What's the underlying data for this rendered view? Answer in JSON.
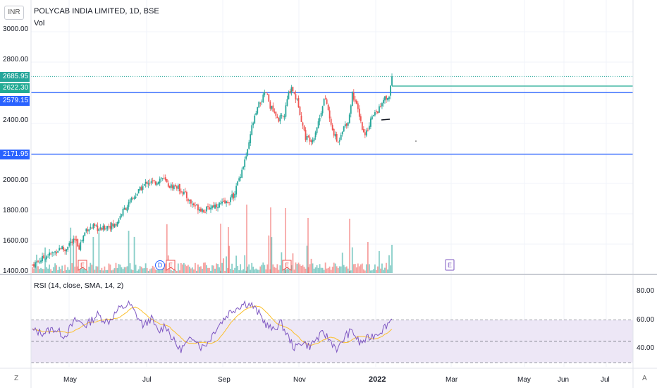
{
  "header": {
    "currency": "INR",
    "symbol_title": "POLYCAB INDIA LIMITED, 1D, BSE",
    "volume_label": "Vol"
  },
  "price_axis": {
    "labels": [
      "3000.00",
      "2800.00",
      "2400.00",
      "2000.00",
      "1800.00",
      "1600.00",
      "1400.00"
    ]
  },
  "price_tags": [
    {
      "value": "2685.95",
      "color": "#26a69a"
    },
    {
      "value": "2622.30",
      "color": "#22ab94"
    },
    {
      "value": "2579.15",
      "color": "#2962ff"
    },
    {
      "value": "2171.95",
      "color": "#2962ff"
    }
  ],
  "rsi": {
    "label": "RSI (14, close, SMA, 14, 2)",
    "axis_labels": [
      "80.00",
      "60.00",
      "40.00"
    ]
  },
  "time_axis": {
    "labels": [
      "May",
      "Jul",
      "Sep",
      "Nov",
      "2022",
      "Mar",
      "May",
      "Jun",
      "Jul"
    ],
    "bold_label": "2022"
  },
  "corner_buttons": {
    "left": "Z",
    "right": "A"
  },
  "event_markers": [
    "E",
    "D",
    "E",
    "E",
    "E"
  ],
  "colors": {
    "up": "#26a69a",
    "down": "#ef5350",
    "hline": "#2962ff",
    "rsi_line": "#7e57c2",
    "rsi_sma": "#fbc02d",
    "rsi_band": "#ede7f6"
  },
  "chart_data": {
    "type": "candlestick",
    "symbol": "POLYCAB INDIA LIMITED",
    "interval": "1D",
    "exchange": "BSE",
    "x_range": [
      "2021-04",
      "2022-07"
    ],
    "ylim": [
      1400,
      3050
    ],
    "horizontal_lines": [
      2579.15,
      2171.95,
      2622.3
    ],
    "last_price": 2685.95,
    "close_anchors": [
      {
        "t": 0,
        "v": 1440
      },
      {
        "t": 0.02,
        "v": 1470
      },
      {
        "t": 0.04,
        "v": 1500
      },
      {
        "t": 0.06,
        "v": 1520
      },
      {
        "t": 0.08,
        "v": 1560
      },
      {
        "t": 0.09,
        "v": 1530
      },
      {
        "t": 0.1,
        "v": 1580
      },
      {
        "t": 0.12,
        "v": 1600
      },
      {
        "t": 0.13,
        "v": 1560
      },
      {
        "t": 0.15,
        "v": 1680
      },
      {
        "t": 0.17,
        "v": 1690
      },
      {
        "t": 0.19,
        "v": 1670
      },
      {
        "t": 0.21,
        "v": 1700
      },
      {
        "t": 0.23,
        "v": 1700
      },
      {
        "t": 0.25,
        "v": 1790
      },
      {
        "t": 0.28,
        "v": 1880
      },
      {
        "t": 0.3,
        "v": 1940
      },
      {
        "t": 0.32,
        "v": 1990
      },
      {
        "t": 0.34,
        "v": 1980
      },
      {
        "t": 0.36,
        "v": 2020
      },
      {
        "t": 0.38,
        "v": 1960
      },
      {
        "t": 0.4,
        "v": 1960
      },
      {
        "t": 0.42,
        "v": 1920
      },
      {
        "t": 0.44,
        "v": 1850
      },
      {
        "t": 0.46,
        "v": 1820
      },
      {
        "t": 0.48,
        "v": 1800
      },
      {
        "t": 0.5,
        "v": 1830
      },
      {
        "t": 0.52,
        "v": 1840
      },
      {
        "t": 0.54,
        "v": 1850
      },
      {
        "t": 0.56,
        "v": 1900
      },
      {
        "t": 0.58,
        "v": 2050
      },
      {
        "t": 0.6,
        "v": 2200
      },
      {
        "t": 0.61,
        "v": 2350
      },
      {
        "t": 0.63,
        "v": 2500
      },
      {
        "t": 0.65,
        "v": 2580
      },
      {
        "t": 0.66,
        "v": 2500
      },
      {
        "t": 0.68,
        "v": 2400
      },
      {
        "t": 0.7,
        "v": 2420
      },
      {
        "t": 0.71,
        "v": 2550
      },
      {
        "t": 0.72,
        "v": 2620
      },
      {
        "t": 0.74,
        "v": 2500
      },
      {
        "t": 0.75,
        "v": 2380
      },
      {
        "t": 0.76,
        "v": 2280
      },
      {
        "t": 0.78,
        "v": 2270
      },
      {
        "t": 0.8,
        "v": 2420
      },
      {
        "t": 0.81,
        "v": 2540
      },
      {
        "t": 0.82,
        "v": 2500
      },
      {
        "t": 0.83,
        "v": 2360
      },
      {
        "t": 0.85,
        "v": 2240
      },
      {
        "t": 0.86,
        "v": 2330
      },
      {
        "t": 0.88,
        "v": 2400
      },
      {
        "t": 0.89,
        "v": 2580
      },
      {
        "t": 0.9,
        "v": 2500
      },
      {
        "t": 0.91,
        "v": 2430
      },
      {
        "t": 0.92,
        "v": 2310
      },
      {
        "t": 0.93,
        "v": 2320
      },
      {
        "t": 0.94,
        "v": 2400
      },
      {
        "t": 0.96,
        "v": 2460
      },
      {
        "t": 0.97,
        "v": 2490
      },
      {
        "t": 0.98,
        "v": 2540
      },
      {
        "t": 0.99,
        "v": 2530
      },
      {
        "t": 1.0,
        "v": 2685.95
      }
    ],
    "rsi_anchors": [
      {
        "t": 0,
        "v": 60
      },
      {
        "t": 0.03,
        "v": 58
      },
      {
        "t": 0.06,
        "v": 62
      },
      {
        "t": 0.09,
        "v": 55
      },
      {
        "t": 0.12,
        "v": 70
      },
      {
        "t": 0.15,
        "v": 65
      },
      {
        "t": 0.18,
        "v": 75
      },
      {
        "t": 0.21,
        "v": 68
      },
      {
        "t": 0.24,
        "v": 80
      },
      {
        "t": 0.27,
        "v": 85
      },
      {
        "t": 0.29,
        "v": 74
      },
      {
        "t": 0.31,
        "v": 64
      },
      {
        "t": 0.33,
        "v": 72
      },
      {
        "t": 0.35,
        "v": 58
      },
      {
        "t": 0.37,
        "v": 66
      },
      {
        "t": 0.39,
        "v": 52
      },
      {
        "t": 0.41,
        "v": 42
      },
      {
        "t": 0.43,
        "v": 48
      },
      {
        "t": 0.45,
        "v": 55
      },
      {
        "t": 0.47,
        "v": 44
      },
      {
        "t": 0.49,
        "v": 50
      },
      {
        "t": 0.51,
        "v": 62
      },
      {
        "t": 0.53,
        "v": 70
      },
      {
        "t": 0.55,
        "v": 78
      },
      {
        "t": 0.57,
        "v": 82
      },
      {
        "t": 0.59,
        "v": 86
      },
      {
        "t": 0.61,
        "v": 84
      },
      {
        "t": 0.63,
        "v": 76
      },
      {
        "t": 0.65,
        "v": 66
      },
      {
        "t": 0.67,
        "v": 60
      },
      {
        "t": 0.69,
        "v": 68
      },
      {
        "t": 0.71,
        "v": 55
      },
      {
        "t": 0.73,
        "v": 43
      },
      {
        "t": 0.75,
        "v": 50
      },
      {
        "t": 0.77,
        "v": 45
      },
      {
        "t": 0.79,
        "v": 52
      },
      {
        "t": 0.81,
        "v": 58
      },
      {
        "t": 0.83,
        "v": 50
      },
      {
        "t": 0.85,
        "v": 42
      },
      {
        "t": 0.87,
        "v": 55
      },
      {
        "t": 0.89,
        "v": 60
      },
      {
        "t": 0.91,
        "v": 48
      },
      {
        "t": 0.93,
        "v": 52
      },
      {
        "t": 0.95,
        "v": 56
      },
      {
        "t": 0.97,
        "v": 60
      },
      {
        "t": 1.0,
        "v": 71
      }
    ]
  }
}
